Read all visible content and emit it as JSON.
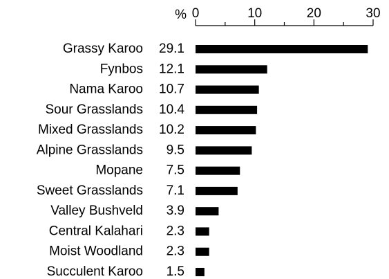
{
  "chart_data": {
    "type": "barh",
    "xlabel": "%",
    "categories": [
      "Grassy Karoo",
      "Fynbos",
      "Nama Karoo",
      "Sour Grasslands",
      "Mixed Grasslands",
      "Alpine Grasslands",
      "Mopane",
      "Sweet Grasslands",
      "Valley Bushveld",
      "Central Kalahari",
      "Moist Woodland",
      "Succulent Karoo"
    ],
    "values": [
      29.1,
      12.1,
      10.7,
      10.4,
      10.2,
      9.5,
      7.5,
      7.1,
      3.9,
      2.3,
      2.3,
      1.5
    ],
    "color": "#000000",
    "xlim": [
      0,
      30
    ],
    "xticks": [
      0,
      10,
      20,
      30
    ],
    "minor_xticks": [
      5,
      15,
      25
    ]
  }
}
